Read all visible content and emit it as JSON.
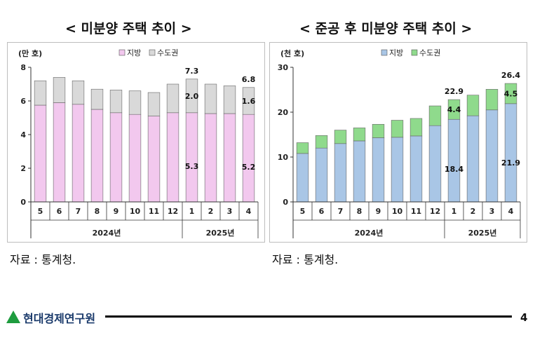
{
  "charts": [
    {
      "title": "< 미분양 주택 추이 >",
      "unit": "(만 호)",
      "source": "자료 : 통계청.",
      "colors": {
        "local": "#f2c8ee",
        "capital": "#d9d9d9"
      }
    },
    {
      "title": "< 준공 후 미분양 주택 추이 >",
      "unit": "(천 호)",
      "source": "자료 : 통계청.",
      "colors": {
        "local": "#a9c6e6",
        "capital": "#8fda8c"
      }
    }
  ],
  "footer": {
    "org": "현대경제연구원",
    "page": "4",
    "logo_color": "#1e9c3e"
  },
  "chart_data": [
    {
      "type": "bar",
      "stacked": true,
      "title": "< 미분양 주택 추이 >",
      "ylabel": "(만 호)",
      "ylim": [
        0,
        8
      ],
      "yticks": [
        0,
        2,
        4,
        6,
        8
      ],
      "categories": [
        "5",
        "6",
        "7",
        "8",
        "9",
        "10",
        "11",
        "12",
        "1",
        "2",
        "3",
        "4"
      ],
      "year_groups": [
        {
          "label": "2024년",
          "count": 8
        },
        {
          "label": "2025년",
          "count": 4
        }
      ],
      "legend_position": "top",
      "series": [
        {
          "name": "지방",
          "values": [
            5.75,
            5.9,
            5.8,
            5.5,
            5.3,
            5.2,
            5.1,
            5.3,
            5.3,
            5.25,
            5.25,
            5.2
          ]
        },
        {
          "name": "수도권",
          "values": [
            1.45,
            1.5,
            1.4,
            1.2,
            1.35,
            1.4,
            1.4,
            1.7,
            2.0,
            1.75,
            1.65,
            1.6
          ]
        }
      ],
      "annotations": [
        {
          "category": "1",
          "series": "수도권",
          "label": "2.0"
        },
        {
          "category": "1",
          "series": "지방",
          "label": "5.3"
        },
        {
          "category": "1",
          "series": "total",
          "label": "7.3"
        },
        {
          "category": "4",
          "series": "수도권",
          "label": "1.6"
        },
        {
          "category": "4",
          "series": "지방",
          "label": "5.2"
        },
        {
          "category": "4",
          "series": "total",
          "label": "6.8"
        }
      ]
    },
    {
      "type": "bar",
      "stacked": true,
      "title": "< 준공 후 미분양 주택 추이 >",
      "ylabel": "(천 호)",
      "ylim": [
        0,
        30
      ],
      "yticks": [
        0,
        10,
        20,
        30
      ],
      "categories": [
        "5",
        "6",
        "7",
        "8",
        "9",
        "10",
        "11",
        "12",
        "1",
        "2",
        "3",
        "4"
      ],
      "year_groups": [
        {
          "label": "2024년",
          "count": 8
        },
        {
          "label": "2025년",
          "count": 4
        }
      ],
      "legend_position": "top",
      "series": [
        {
          "name": "지방",
          "values": [
            10.8,
            12.0,
            13.0,
            13.6,
            14.3,
            14.4,
            14.7,
            17.0,
            18.4,
            19.2,
            20.5,
            21.9
          ]
        },
        {
          "name": "수도권",
          "values": [
            2.4,
            2.8,
            3.0,
            2.9,
            3.0,
            3.8,
            3.9,
            4.4,
            4.4,
            4.6,
            4.6,
            4.5
          ]
        }
      ],
      "annotations": [
        {
          "category": "1",
          "series": "수도권",
          "label": "4.4"
        },
        {
          "category": "1",
          "series": "지방",
          "label": "18.4"
        },
        {
          "category": "1",
          "series": "total",
          "label": "22.9"
        },
        {
          "category": "4",
          "series": "수도권",
          "label": "4.5"
        },
        {
          "category": "4",
          "series": "지방",
          "label": "21.9"
        },
        {
          "category": "4",
          "series": "total",
          "label": "26.4"
        }
      ]
    }
  ]
}
